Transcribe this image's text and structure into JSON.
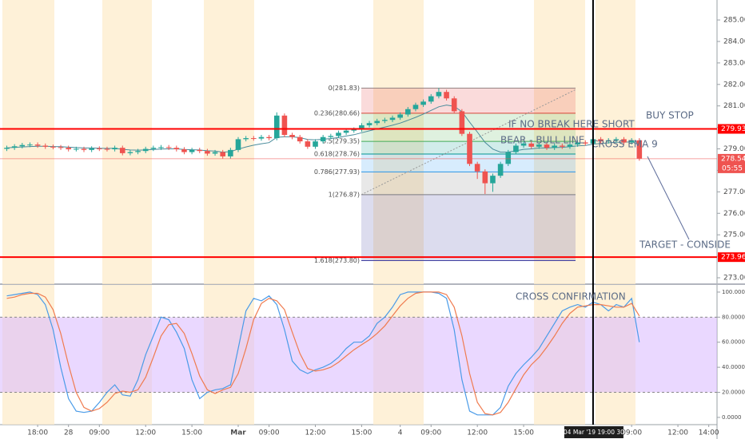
{
  "chart_data": [
    {
      "type": "candlestick",
      "xlim": [
        -0.88,
        92.07
      ],
      "ylim": [
        272.74,
        285.93
      ],
      "yticks": [
        {
          "value": 273,
          "label": "273.00"
        },
        {
          "value": 274,
          "label": "274.00"
        },
        {
          "value": 275,
          "label": "275.00"
        },
        {
          "value": 276,
          "label": "276.00"
        },
        {
          "value": 277,
          "label": "277.00"
        },
        {
          "value": 278,
          "label": "278.00"
        },
        {
          "value": 279,
          "label": "279.00"
        },
        {
          "value": 280,
          "label": "280.00"
        },
        {
          "value": 281,
          "label": "281.00"
        },
        {
          "value": 282,
          "label": "282.00"
        },
        {
          "value": 283,
          "label": "283.00"
        },
        {
          "value": 284,
          "label": "284.00"
        },
        {
          "value": 285,
          "label": "285.00"
        }
      ],
      "up_color": "#26a69a",
      "down_color": "#ef5350",
      "open": [
        279.0,
        279.05,
        279.12,
        279.18,
        279.2,
        279.15,
        279.1,
        279.08,
        279.05,
        278.98,
        279.0,
        278.95,
        279.02,
        279.0,
        278.98,
        279.05,
        278.8,
        278.85,
        278.9,
        279.0,
        279.05,
        279.08,
        279.05,
        278.98,
        278.85,
        278.95,
        278.9,
        278.78,
        278.85,
        278.65,
        278.95,
        279.45,
        279.5,
        279.48,
        279.55,
        279.5,
        280.55,
        279.65,
        279.55,
        279.35,
        279.1,
        279.35,
        279.55,
        279.6,
        279.75,
        279.85,
        279.9,
        280.1,
        280.2,
        280.3,
        280.35,
        280.45,
        280.6,
        280.85,
        281.05,
        281.2,
        281.45,
        281.65,
        281.35,
        280.75,
        279.7,
        278.3,
        277.95,
        277.4,
        277.75,
        278.3,
        278.85,
        279.15,
        279.25,
        279.1,
        279.2,
        279.05,
        279.15,
        279.1,
        279.2,
        279.3,
        279.25,
        279.45,
        279.35,
        279.4,
        279.45,
        279.3,
        279.4
      ],
      "high": [
        279.15,
        279.22,
        279.28,
        279.3,
        279.3,
        279.25,
        279.2,
        279.18,
        279.15,
        279.1,
        279.1,
        279.12,
        279.12,
        279.1,
        279.15,
        279.15,
        278.95,
        279.0,
        279.1,
        279.15,
        279.18,
        279.18,
        279.15,
        279.08,
        279.05,
        279.05,
        279.0,
        278.95,
        278.95,
        279.05,
        279.55,
        279.6,
        279.6,
        279.65,
        279.65,
        280.7,
        280.65,
        279.75,
        279.65,
        279.45,
        279.45,
        279.65,
        279.7,
        279.85,
        279.95,
        280.0,
        280.2,
        280.3,
        280.4,
        280.45,
        280.55,
        280.7,
        280.95,
        281.15,
        281.3,
        281.55,
        281.83,
        281.75,
        281.45,
        280.85,
        279.8,
        278.4,
        278.05,
        277.85,
        278.4,
        278.95,
        279.25,
        279.35,
        279.35,
        279.3,
        279.3,
        279.25,
        279.25,
        279.3,
        279.4,
        279.4,
        279.55,
        279.55,
        279.5,
        279.55,
        279.55,
        279.5,
        279.5
      ],
      "low": [
        278.9,
        278.95,
        279.02,
        279.08,
        279.05,
        279.0,
        278.98,
        278.95,
        278.88,
        278.88,
        278.85,
        278.85,
        278.9,
        278.88,
        278.88,
        278.7,
        278.7,
        278.75,
        278.8,
        278.9,
        278.95,
        278.95,
        278.88,
        278.75,
        278.75,
        278.8,
        278.68,
        278.68,
        278.55,
        278.55,
        278.85,
        279.35,
        279.38,
        279.38,
        279.4,
        279.4,
        279.55,
        279.45,
        279.25,
        279.0,
        279.0,
        279.25,
        279.45,
        279.5,
        279.65,
        279.75,
        279.8,
        280.0,
        280.1,
        280.2,
        280.25,
        280.35,
        280.5,
        280.75,
        280.95,
        281.1,
        281.35,
        281.25,
        280.65,
        279.6,
        278.2,
        277.6,
        276.9,
        277.0,
        277.65,
        278.2,
        278.75,
        279.05,
        279.0,
        279.0,
        278.95,
        278.95,
        279.0,
        279.0,
        279.1,
        279.15,
        279.15,
        279.25,
        279.25,
        279.3,
        279.2,
        279.2,
        278.45
      ],
      "close": [
        279.05,
        279.12,
        279.18,
        279.2,
        279.15,
        279.1,
        279.08,
        279.05,
        278.98,
        279.0,
        278.95,
        279.02,
        279.0,
        278.98,
        279.05,
        278.8,
        278.85,
        278.9,
        279.0,
        279.05,
        279.08,
        279.05,
        278.98,
        278.85,
        278.95,
        278.9,
        278.78,
        278.85,
        278.65,
        278.95,
        279.45,
        279.5,
        279.48,
        279.55,
        279.5,
        280.55,
        279.65,
        279.55,
        279.35,
        279.1,
        279.35,
        279.55,
        279.6,
        279.75,
        279.85,
        279.9,
        280.1,
        280.2,
        280.3,
        280.35,
        280.45,
        280.6,
        280.85,
        281.05,
        281.2,
        281.45,
        281.65,
        281.35,
        280.75,
        279.7,
        278.3,
        277.95,
        277.4,
        277.75,
        278.3,
        278.85,
        279.15,
        279.25,
        279.1,
        279.2,
        279.05,
        279.15,
        279.1,
        279.2,
        279.3,
        279.25,
        279.45,
        279.35,
        279.4,
        279.45,
        279.3,
        279.4,
        278.55
      ],
      "ema": {
        "color": "#4a8c9c",
        "values": [
          279.05,
          279.07,
          279.09,
          279.11,
          279.12,
          279.12,
          279.11,
          279.1,
          279.08,
          279.06,
          279.04,
          279.04,
          279.03,
          279.02,
          279.03,
          278.98,
          278.95,
          278.94,
          278.95,
          278.97,
          278.99,
          279.0,
          279.0,
          278.97,
          278.96,
          278.95,
          278.91,
          278.9,
          278.85,
          278.87,
          278.99,
          279.09,
          279.17,
          279.24,
          279.29,
          279.54,
          279.56,
          279.56,
          279.52,
          279.44,
          279.42,
          279.45,
          279.48,
          279.53,
          279.6,
          279.66,
          279.75,
          279.84,
          279.93,
          280.01,
          280.1,
          280.2,
          280.33,
          280.47,
          280.62,
          280.79,
          280.96,
          281.04,
          280.98,
          280.73,
          280.24,
          279.78,
          279.3,
          278.99,
          278.85,
          278.85,
          278.91,
          278.98,
          279.0,
          279.04,
          279.04,
          279.06,
          279.07,
          279.1,
          279.14,
          279.16,
          279.22,
          279.25,
          279.28,
          279.31,
          279.31,
          279.33,
          279.18
        ]
      },
      "fib_levels": [
        {
          "value": 281.83,
          "label": "0(281.83)",
          "color": "#8a8a8a"
        },
        {
          "value": 280.66,
          "label": "0.236(280.66)",
          "color": "#e53935"
        },
        {
          "value": 279.35,
          "label": "0.5(279.35)",
          "color": "#4caf50"
        },
        {
          "value": 278.76,
          "label": "0.618(278.76)",
          "color": "#009688"
        },
        {
          "value": 277.93,
          "label": "0.786(277.93)",
          "color": "#2196f3"
        },
        {
          "value": 276.87,
          "label": "1(276.87)",
          "color": "#808080"
        },
        {
          "value": 273.8,
          "label": "1.618(273.80)",
          "color": "#3f3fa0"
        }
      ],
      "hlines": [
        {
          "value": 279.93,
          "color": "#ff0000"
        },
        {
          "value": 273.96,
          "color": "#ff0000"
        }
      ],
      "last_price": {
        "value": 278.54,
        "color": "#ef5350"
      },
      "countdown": "05:55",
      "annotations": [
        "IF NO BREAK HERE  SHORT",
        "BEAR - BULL LINE",
        "CROSS EMA 9",
        "BUY STOP",
        "TARGET - CONSIDE"
      ]
    },
    {
      "type": "line",
      "xlim": [
        -0.88,
        92.07
      ],
      "ylim": [
        -4.5,
        105.7
      ],
      "yticks": [
        {
          "value": 0,
          "label": "0.0000"
        },
        {
          "value": 20,
          "label": "20.0000"
        },
        {
          "value": 40,
          "label": "40.0000"
        },
        {
          "value": 60,
          "label": "60.0000"
        },
        {
          "value": 80,
          "label": "80.0000"
        },
        {
          "value": 100,
          "label": "100.0000"
        }
      ],
      "xticks": [
        {
          "value": 4,
          "label": "18:00"
        },
        {
          "value": 8,
          "label": "28"
        },
        {
          "value": 12,
          "label": "09:00"
        },
        {
          "value": 18,
          "label": "12:00"
        },
        {
          "value": 24,
          "label": "15:00"
        },
        {
          "value": 30,
          "label": "Mar"
        },
        {
          "value": 34,
          "label": "09:00"
        },
        {
          "value": 40,
          "label": "12:00"
        },
        {
          "value": 46,
          "label": "15:00"
        },
        {
          "value": 51,
          "label": "4"
        },
        {
          "value": 55,
          "label": "09:00"
        },
        {
          "value": 61,
          "label": "12:00"
        },
        {
          "value": 67,
          "label": "15:00"
        },
        {
          "value": 81,
          "label": "09:00"
        },
        {
          "value": 87,
          "label": "12:00"
        },
        {
          "value": 91,
          "label": "14:00"
        }
      ],
      "crosshair": {
        "value": 76,
        "label": "04 Mar '19   19:00   30"
      },
      "band": [
        20,
        80
      ],
      "band_color": "#d9b8ff",
      "series": [
        {
          "color": "#4a9be8",
          "values": [
            97,
            98,
            99,
            100,
            98,
            90,
            70,
            40,
            15,
            5,
            4,
            5,
            12,
            20,
            26,
            18,
            17,
            30,
            50,
            65,
            80,
            78,
            68,
            55,
            30,
            15,
            20,
            22,
            23,
            26,
            55,
            85,
            95,
            93,
            97,
            90,
            70,
            45,
            38,
            35,
            38,
            40,
            43,
            48,
            55,
            60,
            60,
            65,
            75,
            80,
            88,
            98,
            100,
            100,
            100,
            100,
            99,
            95,
            70,
            30,
            5,
            2,
            2,
            2,
            8,
            25,
            35,
            42,
            48,
            55,
            65,
            75,
            85,
            88,
            90,
            88,
            92,
            90,
            85,
            90,
            88,
            95,
            60
          ]
        },
        {
          "color": "#f07b4f",
          "values": [
            95,
            96,
            98,
            99,
            99,
            96,
            86,
            67,
            42,
            20,
            8,
            5,
            7,
            12,
            19,
            21,
            20,
            22,
            32,
            48,
            65,
            74,
            75,
            67,
            51,
            33,
            22,
            19,
            22,
            24,
            35,
            55,
            78,
            91,
            95,
            93,
            86,
            68,
            51,
            39,
            37,
            38,
            40,
            44,
            49,
            54,
            58,
            62,
            67,
            73,
            81,
            89,
            95,
            99,
            100,
            100,
            100,
            98,
            88,
            65,
            35,
            12,
            3,
            2,
            4,
            12,
            23,
            34,
            42,
            48,
            56,
            65,
            75,
            83,
            88,
            89,
            90,
            90,
            89,
            88,
            88,
            91,
            81
          ]
        }
      ],
      "annotations": [
        "CROSS CONFIRMATION"
      ]
    }
  ]
}
